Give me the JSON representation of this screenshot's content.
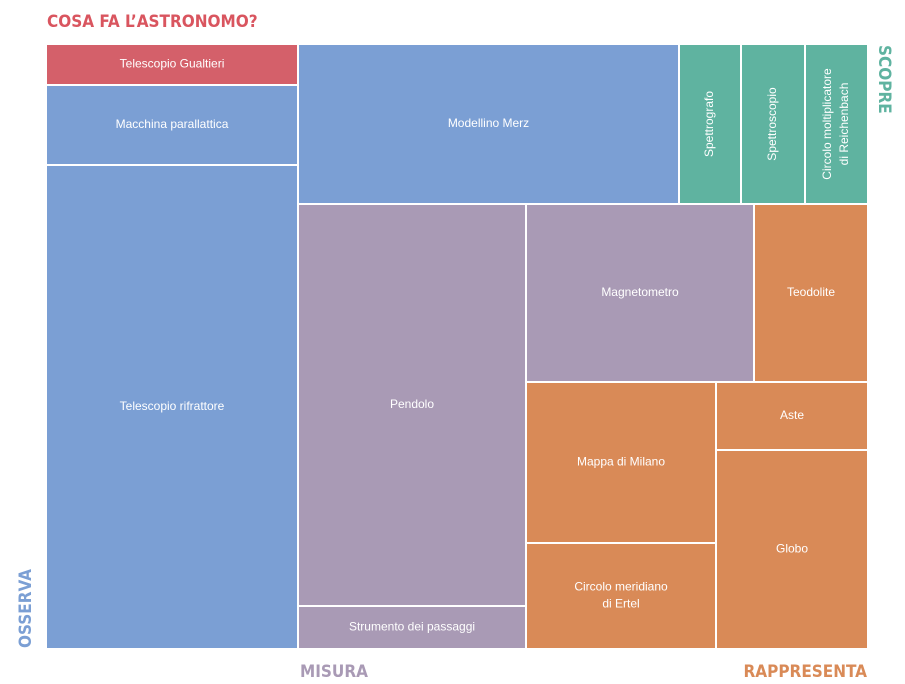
{
  "header": {
    "title": "COSA FA L’ASTRONOMO?"
  },
  "groups": {
    "osserva": "OSSERVA",
    "misura": "MISURA",
    "rappresenta": "RAPPRESENTA",
    "scopre": "SCOPRE"
  },
  "nodes": [
    {
      "label": [
        "Telescopio Gualtieri"
      ]
    },
    {
      "label": [
        "Macchina parallattica"
      ]
    },
    {
      "label": [
        "Telescopio rifrattore"
      ]
    },
    {
      "label": [
        "Modellino Merz"
      ]
    },
    {
      "label": [
        "Spettrografo"
      ]
    },
    {
      "label": [
        "Spettroscopio"
      ]
    },
    {
      "label": [
        "Circolo moltiplicatore",
        "di Reichenbach"
      ]
    },
    {
      "label": [
        "Pendolo"
      ]
    },
    {
      "label": [
        "Strumento dei passaggi"
      ]
    },
    {
      "label": [
        "Magnetometro"
      ]
    },
    {
      "label": [
        "Teodolite"
      ]
    },
    {
      "label": [
        "Mappa di Milano"
      ]
    },
    {
      "label": [
        "Aste"
      ]
    },
    {
      "label": [
        "Globo"
      ]
    },
    {
      "label": [
        "Circolo meridiano",
        "di Ertel"
      ]
    }
  ]
}
